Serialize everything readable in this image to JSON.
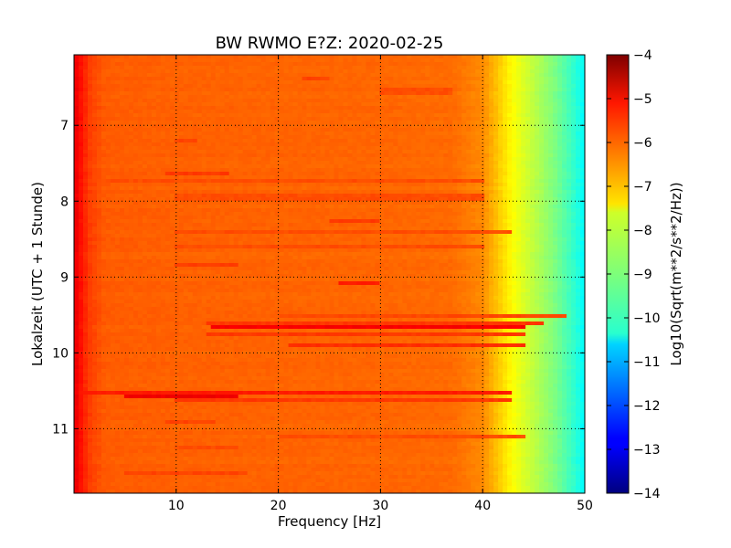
{
  "chart_data": {
    "type": "heatmap",
    "title": "BW RWMO E?Z: 2020-02-25",
    "xlabel": "Frequency [Hz]",
    "ylabel": "Lokalzeit (UTC + 1 Stunde)",
    "xlim": [
      0,
      50
    ],
    "ylim": [
      11.85,
      6.07
    ],
    "x_ticks": [
      10,
      20,
      30,
      40,
      50
    ],
    "y_ticks": [
      7,
      8,
      9,
      10,
      11
    ],
    "grid": true,
    "colormap": "jet",
    "colorbar": {
      "label": "Log10(Sqrt(m**2/s**2/Hz))",
      "min": -14,
      "max": -4,
      "ticks": [
        -4,
        -5,
        -6,
        -7,
        -8,
        -9,
        -10,
        -11,
        -12,
        -13,
        -14
      ]
    },
    "base_profile": {
      "frequency_hz": [
        0,
        0.5,
        1.5,
        3,
        10,
        30,
        37,
        40,
        41.5,
        43,
        45,
        47,
        49,
        50
      ],
      "log10_value": [
        -5.0,
        -5.3,
        -5.85,
        -6.15,
        -6.2,
        -6.25,
        -6.3,
        -6.6,
        -7.2,
        -7.8,
        -8.4,
        -9.0,
        -9.8,
        -10.3
      ]
    },
    "bands": [
      {
        "time": 6.4,
        "f_min": 22.5,
        "f_max": 25.0,
        "log10_value": -5.9
      },
      {
        "time": 6.55,
        "f_min": 30.0,
        "f_max": 37.0,
        "log10_value": -6.0
      },
      {
        "time": 7.2,
        "f_min": 10.0,
        "f_max": 12.0,
        "log10_value": -5.9
      },
      {
        "time": 7.62,
        "f_min": 9.0,
        "f_max": 15.0,
        "log10_value": -5.8
      },
      {
        "time": 7.75,
        "f_min": 0.5,
        "f_max": 40.0,
        "log10_value": -6.0
      },
      {
        "time": 7.95,
        "f_min": 10.0,
        "f_max": 40.0,
        "log10_value": -6.0
      },
      {
        "time": 8.25,
        "f_min": 25.0,
        "f_max": 30.0,
        "log10_value": -5.8
      },
      {
        "time": 8.4,
        "f_min": 10.0,
        "f_max": 43.0,
        "log10_value": -6.0
      },
      {
        "time": 8.6,
        "f_min": 10.0,
        "f_max": 40.0,
        "log10_value": -6.0
      },
      {
        "time": 8.85,
        "f_min": 10.0,
        "f_max": 16.0,
        "log10_value": -5.85
      },
      {
        "time": 9.1,
        "f_min": 26.0,
        "f_max": 30.0,
        "log10_value": -5.5
      },
      {
        "time": 9.5,
        "f_min": 20.0,
        "f_max": 48.0,
        "log10_value": -5.95
      },
      {
        "time": 9.6,
        "f_min": 13.0,
        "f_max": 46.0,
        "log10_value": -5.8
      },
      {
        "time": 9.68,
        "f_min": 13.5,
        "f_max": 44.0,
        "log10_value": -5.2
      },
      {
        "time": 9.75,
        "f_min": 13.0,
        "f_max": 44.0,
        "log10_value": -5.8
      },
      {
        "time": 9.9,
        "f_min": 21.0,
        "f_max": 44.0,
        "log10_value": -5.7
      },
      {
        "time": 10.52,
        "f_min": 0.5,
        "f_max": 43.0,
        "log10_value": -5.5
      },
      {
        "time": 10.57,
        "f_min": 5.0,
        "f_max": 16.0,
        "log10_value": -5.1
      },
      {
        "time": 10.62,
        "f_min": 10.0,
        "f_max": 43.0,
        "log10_value": -5.8
      },
      {
        "time": 10.9,
        "f_min": 9.0,
        "f_max": 14.0,
        "log10_value": -5.9
      },
      {
        "time": 11.1,
        "f_min": 20.0,
        "f_max": 44.0,
        "log10_value": -6.0
      },
      {
        "time": 11.25,
        "f_min": 10.0,
        "f_max": 16.0,
        "log10_value": -6.0
      },
      {
        "time": 11.6,
        "f_min": 5.0,
        "f_max": 17.0,
        "log10_value": -5.9
      }
    ]
  }
}
